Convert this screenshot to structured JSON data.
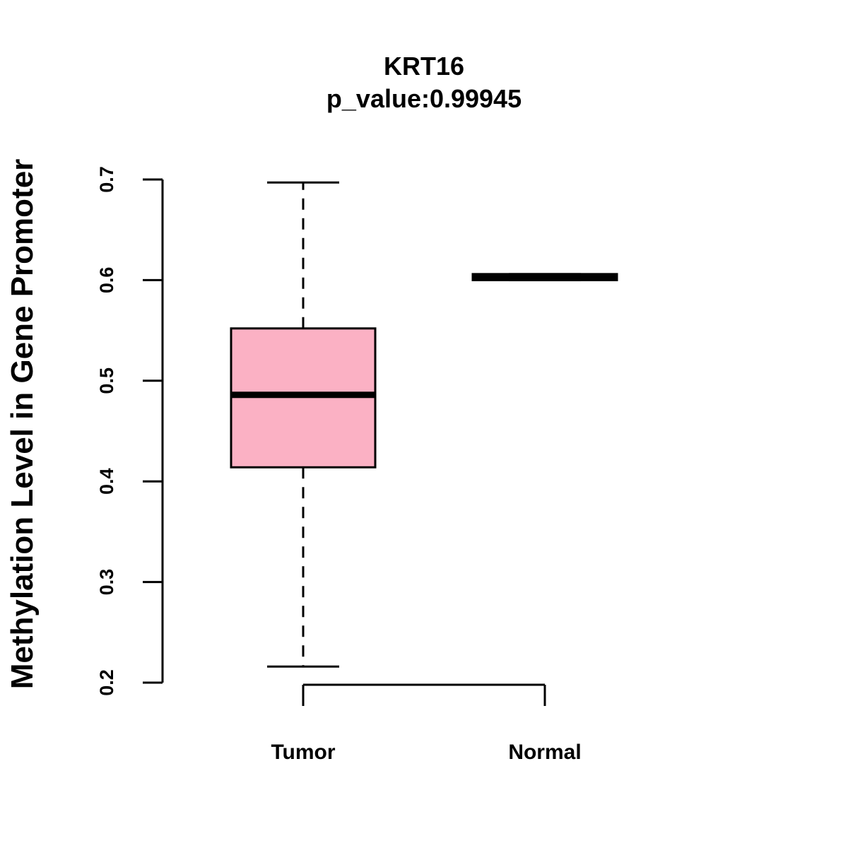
{
  "chart_data": {
    "type": "boxplot",
    "title": "KRT16",
    "subtitle": "p_value:0.99945",
    "xlabel": "",
    "ylabel": "Methylation Level in Gene Promoter",
    "ylim": [
      0.2,
      0.7
    ],
    "y_ticks": [
      0.2,
      0.3,
      0.4,
      0.5,
      0.6,
      0.7
    ],
    "y_tick_labels": [
      "0.2",
      "0.3",
      "0.4",
      "0.5",
      "0.6",
      "0.7"
    ],
    "grid": false,
    "categories": [
      "Tumor",
      "Normal"
    ],
    "boxes": [
      {
        "name": "Tumor",
        "whisker_low": 0.216,
        "q1": 0.414,
        "median": 0.486,
        "q3": 0.552,
        "whisker_high": 0.697,
        "fill": "#fbb1c4"
      },
      {
        "name": "Normal",
        "whisker_low": 0.6,
        "q1": 0.6,
        "median": 0.603,
        "q3": 0.606,
        "whisker_high": 0.606,
        "fill": "#000000"
      }
    ]
  }
}
